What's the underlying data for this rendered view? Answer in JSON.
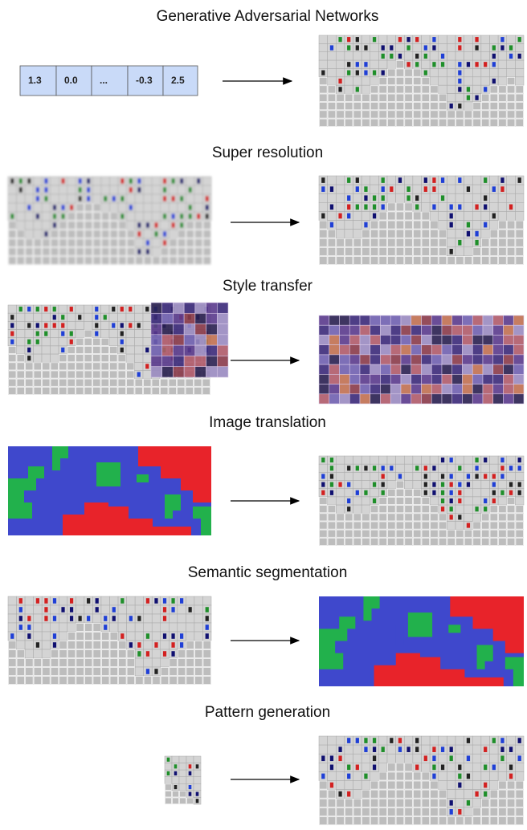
{
  "titles": [
    "Generative Adversarial Networks",
    "Super resolution",
    "Style transfer",
    "Image translation",
    "Semantic segmentation",
    "Pattern generation"
  ],
  "vector": {
    "cells": [
      "1.3",
      "0.0",
      "...",
      "-0.3",
      "2.5"
    ]
  }
}
